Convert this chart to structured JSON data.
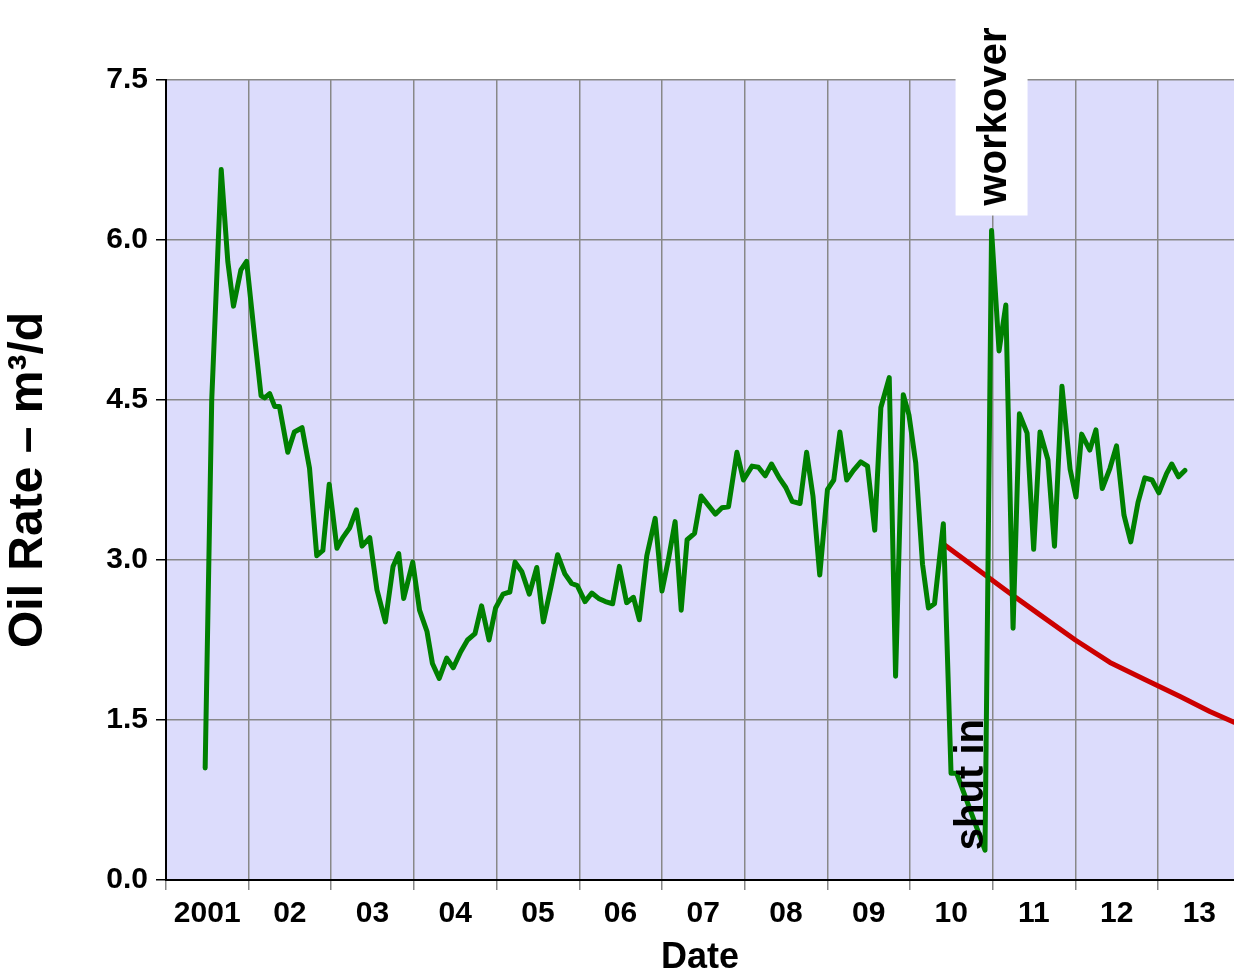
{
  "chart_data": {
    "type": "line",
    "xlabel": "Date",
    "ylabel": "Oil Rate – m³/d",
    "xlim": [
      "2001-01-01",
      "2013-12-02"
    ],
    "ylim": [
      0,
      7.5
    ],
    "xticks": [
      {
        "value": "2001-01-01",
        "label": null
      },
      {
        "value": "2001-07-02",
        "label": "2001"
      },
      {
        "value": "2002-01-01",
        "label": null
      },
      {
        "value": "2002-07-02",
        "label": "02"
      },
      {
        "value": "2003-01-01",
        "label": null
      },
      {
        "value": "2003-07-02",
        "label": "03"
      },
      {
        "value": "2004-01-01",
        "label": null
      },
      {
        "value": "2004-07-02",
        "label": "04"
      },
      {
        "value": "2005-01-01",
        "label": null
      },
      {
        "value": "2005-07-02",
        "label": "05"
      },
      {
        "value": "2006-01-01",
        "label": null
      },
      {
        "value": "2006-07-02",
        "label": "06"
      },
      {
        "value": "2007-01-01",
        "label": null
      },
      {
        "value": "2007-07-02",
        "label": "07"
      },
      {
        "value": "2008-01-01",
        "label": null
      },
      {
        "value": "2008-07-02",
        "label": "08"
      },
      {
        "value": "2009-01-01",
        "label": null
      },
      {
        "value": "2009-07-02",
        "label": "09"
      },
      {
        "value": "2010-01-01",
        "label": null
      },
      {
        "value": "2010-07-02",
        "label": "10"
      },
      {
        "value": "2011-01-01",
        "label": null
      },
      {
        "value": "2011-07-02",
        "label": "11"
      },
      {
        "value": "2012-01-01",
        "label": null
      },
      {
        "value": "2012-07-02",
        "label": "12"
      },
      {
        "value": "2013-01-01",
        "label": null
      },
      {
        "value": "2013-07-02",
        "label": "13"
      }
    ],
    "yticks": [
      {
        "value": 0,
        "label": "0.0"
      },
      {
        "value": 1.5,
        "label": "1.5"
      },
      {
        "value": 3,
        "label": "3.0"
      },
      {
        "value": 4.5,
        "label": "4.5"
      },
      {
        "value": 6,
        "label": "6.0"
      },
      {
        "value": 7.5,
        "label": "7.5"
      }
    ],
    "grid": true,
    "legend": false,
    "marker": "none",
    "line_style": "solid",
    "series": [
      {
        "color": "#008000",
        "x": [
          "2001-06-23",
          "2001-07-22",
          "2001-09-02",
          "2001-10-01",
          "2001-10-26",
          "2001-11-28",
          "2001-12-23",
          "2002-01-29",
          "2002-02-25",
          "2002-03-13",
          "2002-04-04",
          "2002-04-26",
          "2002-05-17",
          "2002-06-23",
          "2002-07-22",
          "2002-08-25",
          "2002-09-27",
          "2002-10-29",
          "2002-11-25",
          "2002-12-23",
          "2003-01-26",
          "2003-02-21",
          "2003-03-23",
          "2003-04-22",
          "2003-05-17",
          "2003-06-20",
          "2003-07-22",
          "2003-08-28",
          "2003-10-01",
          "2003-10-26",
          "2003-11-17",
          "2003-12-27",
          "2004-01-26",
          "2004-02-28",
          "2004-03-23",
          "2004-04-22",
          "2004-05-25",
          "2004-06-23",
          "2004-07-26",
          "2004-08-25",
          "2004-09-27",
          "2004-10-26",
          "2004-11-28",
          "2004-12-27",
          "2005-01-29",
          "2005-02-28",
          "2005-03-23",
          "2005-04-22",
          "2005-05-25",
          "2005-06-27",
          "2005-07-26",
          "2005-08-28",
          "2005-09-27",
          "2005-10-29",
          "2005-11-28",
          "2005-12-23",
          "2006-01-26",
          "2006-02-25",
          "2006-03-27",
          "2006-04-26",
          "2006-05-28",
          "2006-06-27",
          "2006-07-29",
          "2006-08-28",
          "2006-09-23",
          "2006-10-26",
          "2006-12-02",
          "2007-01-01",
          "2007-01-29",
          "2007-02-28",
          "2007-03-27",
          "2007-04-22",
          "2007-05-25",
          "2007-06-23",
          "2007-07-26",
          "2007-08-25",
          "2007-09-23",
          "2007-10-22",
          "2007-11-28",
          "2007-12-27",
          "2008-02-03",
          "2008-03-02",
          "2008-04-01",
          "2008-04-29",
          "2008-06-02",
          "2008-07-01",
          "2008-07-29",
          "2008-09-02",
          "2008-10-01",
          "2008-10-29",
          "2008-11-28",
          "2009-01-01",
          "2009-01-29",
          "2009-02-25",
          "2009-03-27",
          "2009-04-26",
          "2009-05-28",
          "2009-06-27",
          "2009-07-29",
          "2009-08-25",
          "2009-10-01",
          "2009-10-29",
          "2009-12-02",
          "2009-12-27",
          "2010-01-26",
          "2010-02-25",
          "2010-03-23",
          "2010-04-19",
          "2010-05-28",
          "2010-07-01",
          "2010-07-26",
          "2010-11-28",
          "2010-12-27",
          "2011-01-29",
          "2011-02-28",
          "2011-04-01",
          "2011-04-29",
          "2011-06-02",
          "2011-07-01",
          "2011-07-29",
          "2011-09-02",
          "2011-10-01",
          "2011-11-03",
          "2011-12-09",
          "2012-01-04",
          "2012-01-29",
          "2012-03-05",
          "2012-04-01",
          "2012-04-29",
          "2012-06-02",
          "2012-07-01",
          "2012-08-03",
          "2012-09-02",
          "2012-10-04",
          "2012-11-03",
          "2012-12-05",
          "2013-01-04",
          "2013-02-07",
          "2013-03-02",
          "2013-04-01",
          "2013-04-29"
        ],
        "values": [
          1.05,
          4.5,
          6.66,
          5.8,
          5.38,
          5.72,
          5.8,
          5.06,
          4.54,
          4.52,
          4.56,
          4.44,
          4.44,
          4.01,
          4.2,
          4.24,
          3.86,
          3.04,
          3.09,
          3.71,
          3.11,
          3.21,
          3.3,
          3.47,
          3.13,
          3.21,
          2.72,
          2.42,
          2.94,
          3.06,
          2.64,
          2.98,
          2.53,
          2.33,
          2.03,
          1.89,
          2.08,
          1.99,
          2.14,
          2.25,
          2.31,
          2.57,
          2.25,
          2.55,
          2.68,
          2.7,
          2.98,
          2.89,
          2.68,
          2.93,
          2.42,
          2.74,
          3.05,
          2.87,
          2.78,
          2.76,
          2.61,
          2.69,
          2.64,
          2.61,
          2.59,
          2.94,
          2.6,
          2.65,
          2.44,
          3.04,
          3.39,
          2.71,
          3.0,
          3.36,
          2.53,
          3.19,
          3.25,
          3.6,
          3.51,
          3.43,
          3.49,
          3.5,
          4.01,
          3.75,
          3.88,
          3.87,
          3.79,
          3.9,
          3.77,
          3.68,
          3.55,
          3.53,
          4.01,
          3.6,
          2.86,
          3.66,
          3.75,
          4.2,
          3.75,
          3.84,
          3.92,
          3.88,
          3.28,
          4.43,
          4.71,
          1.91,
          4.55,
          4.36,
          3.91,
          2.96,
          2.55,
          2.59,
          3.34,
          1.0,
          1.0,
          0.28,
          6.09,
          4.96,
          5.39,
          2.36,
          4.37,
          4.19,
          3.1,
          4.2,
          3.94,
          3.13,
          4.63,
          3.85,
          3.59,
          4.18,
          4.03,
          4.22,
          3.67,
          3.86,
          4.07,
          3.42,
          3.17,
          3.54,
          3.77,
          3.75,
          3.63,
          3.81,
          3.9,
          3.78,
          3.84
        ]
      },
      {
        "color": "#cc0000",
        "x": [
          "2010-05-28",
          "2010-10-15",
          "2011-02-25",
          "2011-07-26",
          "2012-01-01",
          "2012-06-02",
          "2012-11-03",
          "2013-04-08",
          "2013-08-17",
          "2013-12-02"
        ],
        "values": [
          3.15,
          2.93,
          2.72,
          2.49,
          2.25,
          2.04,
          1.88,
          1.72,
          1.58,
          1.48
        ]
      }
    ],
    "annotations": [
      {
        "text": "workover",
        "x": "2010-12-27",
        "y": 6.09
      },
      {
        "text": "shut in",
        "x": "2010-11-28",
        "y": 0.28
      }
    ]
  }
}
